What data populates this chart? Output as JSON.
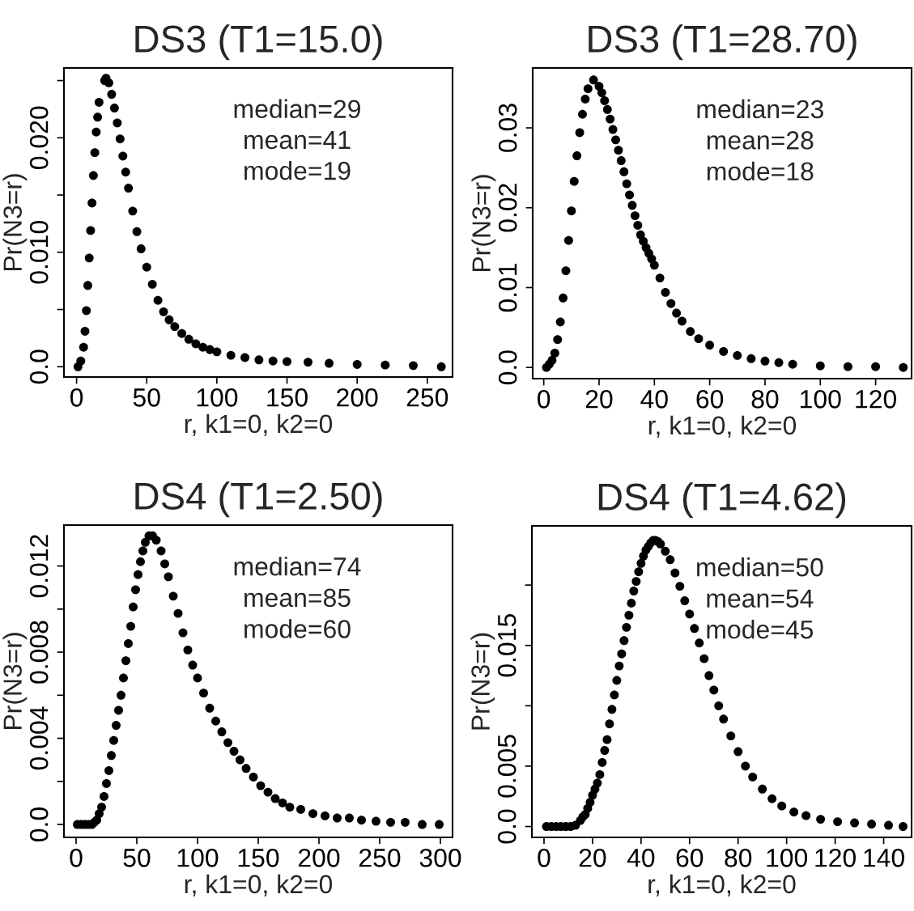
{
  "chart_data": [
    {
      "type": "scatter",
      "title": "DS3 (T1=15.0)",
      "xlabel": "r, k1=0, k2=0",
      "ylabel": "Pr(N3=r)",
      "annotations": [
        "median=29",
        "mean=41",
        "mode=19"
      ],
      "marker": "circle",
      "grid": false,
      "legend": false,
      "xlim": [
        -9,
        268
      ],
      "xticks": [
        0,
        50,
        100,
        150,
        200,
        250
      ],
      "ylim": [
        -0.0009,
        0.0261
      ],
      "yticks": [
        {
          "value": 0,
          "label": "0.0"
        },
        {
          "value": 0.005,
          "label": null
        },
        {
          "value": 0.01,
          "label": "0.010"
        },
        {
          "value": 0.015,
          "label": null
        },
        {
          "value": 0.02,
          "label": "0.020"
        },
        {
          "value": 0.025,
          "label": null
        }
      ],
      "series": [
        {
          "color": "#000000",
          "x": [
            1,
            3,
            5,
            6,
            7,
            8,
            9,
            10,
            11,
            12,
            13,
            14,
            15,
            16,
            20,
            21,
            23,
            25,
            27,
            29,
            31,
            33,
            35,
            37,
            40,
            43,
            46,
            50,
            54,
            58,
            62,
            66,
            70,
            75,
            80,
            85,
            90,
            95,
            100,
            110,
            120,
            130,
            140,
            150,
            165,
            180,
            200,
            220,
            240,
            260
          ],
          "values": [
            0.0,
            0.0005,
            0.0017,
            0.0031,
            0.0049,
            0.0071,
            0.0095,
            0.0119,
            0.0143,
            0.0167,
            0.0187,
            0.0205,
            0.0218,
            0.0231,
            0.025,
            0.0252,
            0.0248,
            0.0238,
            0.0226,
            0.0213,
            0.0199,
            0.0184,
            0.017,
            0.0156,
            0.0136,
            0.0118,
            0.0103,
            0.0087,
            0.0072,
            0.0058,
            0.0048,
            0.0041,
            0.0035,
            0.0029,
            0.0024,
            0.002,
            0.0017,
            0.0015,
            0.0013,
            0.001,
            0.0008,
            0.0006,
            0.0005,
            0.00045,
            0.0004,
            0.0003,
            0.0002,
            0.00015,
            0.0001,
            0.0
          ]
        }
      ]
    },
    {
      "type": "scatter",
      "title": "DS3 (T1=28.70)",
      "xlabel": "r, k1=0, k2=0",
      "ylabel": "Pr(N3=r)",
      "annotations": [
        "median=23",
        "mean=28",
        "mode=18"
      ],
      "marker": "circle",
      "grid": false,
      "legend": false,
      "xlim": [
        -4,
        133
      ],
      "xticks": [
        0,
        20,
        40,
        60,
        80,
        100,
        120
      ],
      "ylim": [
        -0.0014,
        0.0375
      ],
      "yticks": [
        {
          "value": 0,
          "label": "0.0"
        },
        0.01,
        0.02,
        0.03
      ],
      "series": [
        {
          "color": "#000000",
          "x": [
            1,
            2,
            3,
            4,
            5,
            6,
            7,
            8,
            9,
            10,
            11,
            12,
            13,
            14,
            15,
            16,
            18,
            20,
            21,
            22,
            23,
            24,
            25,
            26,
            27,
            28,
            29,
            30,
            31,
            32,
            33,
            34,
            35,
            36,
            37,
            38,
            39,
            40,
            42,
            44,
            46,
            48,
            50,
            53,
            56,
            60,
            65,
            70,
            75,
            80,
            85,
            90,
            100,
            110,
            120,
            130
          ],
          "values": [
            0.0,
            0.0004,
            0.0009,
            0.0018,
            0.0035,
            0.0057,
            0.0087,
            0.0121,
            0.0159,
            0.0196,
            0.0233,
            0.0265,
            0.0294,
            0.0317,
            0.0336,
            0.0349,
            0.036,
            0.0352,
            0.0344,
            0.0334,
            0.0323,
            0.0311,
            0.0298,
            0.0285,
            0.0272,
            0.0259,
            0.0245,
            0.023,
            0.0216,
            0.0203,
            0.019,
            0.0178,
            0.0166,
            0.0158,
            0.015,
            0.0143,
            0.0136,
            0.0128,
            0.0112,
            0.0094,
            0.008,
            0.0068,
            0.0058,
            0.0045,
            0.0036,
            0.0028,
            0.002,
            0.0015,
            0.0011,
            0.0008,
            0.0006,
            0.0004,
            0.0002,
            0.0001,
            0.0001,
            0.0
          ]
        }
      ]
    },
    {
      "type": "scatter",
      "title": "DS4 (T1=2.50)",
      "xlabel": "r, k1=0, k2=0",
      "ylabel": "Pr(N3=r)",
      "annotations": [
        "median=74",
        "mean=85",
        "mode=60"
      ],
      "marker": "circle",
      "grid": false,
      "legend": false,
      "xlim": [
        -10,
        310
      ],
      "xticks": [
        0,
        50,
        100,
        150,
        200,
        250,
        300
      ],
      "ylim": [
        -0.0006,
        0.0139
      ],
      "yticks": [
        {
          "value": 0,
          "label": "0.0"
        },
        {
          "value": 0.002,
          "label": null
        },
        0.004,
        {
          "value": 0.006,
          "label": null
        },
        0.008,
        {
          "value": 0.01,
          "label": null
        },
        0.012
      ],
      "series": [
        {
          "color": "#000000",
          "x": [
            1,
            4,
            7,
            10,
            13,
            15,
            17,
            19,
            21,
            23,
            25,
            27,
            29,
            31,
            33,
            35,
            37,
            39,
            41,
            43,
            45,
            47,
            49,
            51,
            53,
            55,
            57,
            60,
            63,
            66,
            70,
            73,
            76,
            80,
            84,
            88,
            92,
            96,
            100,
            105,
            110,
            115,
            120,
            125,
            130,
            135,
            140,
            146,
            152,
            158,
            164,
            170,
            176,
            185,
            195,
            205,
            215,
            225,
            235,
            247,
            259,
            271,
            285,
            299
          ],
          "values": [
            0.0,
            0.0,
            0.0,
            0.0,
            0.0,
            0.0001,
            0.0002,
            0.0005,
            0.0008,
            0.0013,
            0.0019,
            0.0025,
            0.0032,
            0.0039,
            0.0046,
            0.0053,
            0.006,
            0.0068,
            0.0076,
            0.0084,
            0.0092,
            0.0101,
            0.0109,
            0.0116,
            0.0122,
            0.0127,
            0.0131,
            0.0134,
            0.0134,
            0.0132,
            0.0127,
            0.0121,
            0.0115,
            0.0106,
            0.0098,
            0.0089,
            0.0081,
            0.0074,
            0.0068,
            0.0061,
            0.0054,
            0.0048,
            0.0043,
            0.0038,
            0.0034,
            0.003,
            0.0026,
            0.0022,
            0.0018,
            0.0015,
            0.0012,
            0.001,
            0.0008,
            0.0007,
            0.0005,
            0.0004,
            0.0003,
            0.0003,
            0.0002,
            0.00015,
            0.0001,
            0.0001,
            0.0,
            0.0
          ]
        }
      ]
    },
    {
      "type": "scatter",
      "title": "DS4 (T1=4.62)",
      "xlabel": "r, k1=0, k2=0",
      "ylabel": "Pr(N3=r)",
      "annotations": [
        "median=50",
        "mean=54",
        "mode=45"
      ],
      "marker": "circle",
      "grid": false,
      "legend": false,
      "xlim": [
        -5,
        151.5
      ],
      "xticks": [
        0,
        20,
        40,
        60,
        80,
        100,
        120,
        140
      ],
      "ylim": [
        -0.0009,
        0.0249
      ],
      "yticks": [
        {
          "value": 0,
          "label": "0.0"
        },
        0.005,
        {
          "value": 0.01,
          "label": null
        },
        0.015,
        {
          "value": 0.02,
          "label": null
        }
      ],
      "series": [
        {
          "color": "#000000",
          "x": [
            1,
            3,
            5,
            7,
            9,
            11,
            13,
            15,
            16,
            17,
            18,
            19,
            20,
            21,
            22,
            23,
            24,
            25,
            26,
            27,
            28,
            29,
            30,
            31,
            32,
            33,
            34,
            35,
            36,
            37,
            38,
            39,
            40,
            41,
            42,
            43,
            44,
            45,
            46,
            47,
            48,
            50,
            52,
            54,
            56,
            58,
            60,
            62,
            64,
            66,
            68,
            70,
            72,
            74,
            77,
            80,
            83,
            86,
            90,
            94,
            98,
            103,
            108,
            114,
            121,
            128,
            135,
            142,
            148
          ],
          "values": [
            0.0,
            0.0,
            0.0,
            0.0,
            0.0,
            0.0,
            0.0001,
            0.0005,
            0.0008,
            0.001,
            0.0015,
            0.002,
            0.0026,
            0.0031,
            0.0036,
            0.0043,
            0.0053,
            0.0063,
            0.0072,
            0.0085,
            0.0097,
            0.0109,
            0.0121,
            0.0133,
            0.0143,
            0.0154,
            0.0165,
            0.0175,
            0.0185,
            0.0195,
            0.0203,
            0.0211,
            0.0218,
            0.0224,
            0.0229,
            0.0232,
            0.0235,
            0.0237,
            0.0237,
            0.0236,
            0.0234,
            0.0228,
            0.0221,
            0.021,
            0.0199,
            0.0187,
            0.0176,
            0.0164,
            0.0152,
            0.0139,
            0.0125,
            0.0113,
            0.01,
            0.0089,
            0.0075,
            0.0062,
            0.005,
            0.0041,
            0.0031,
            0.0023,
            0.0017,
            0.0012,
            0.0009,
            0.0006,
            0.0004,
            0.0003,
            0.0002,
            0.0001,
            0.0
          ]
        }
      ]
    }
  ]
}
